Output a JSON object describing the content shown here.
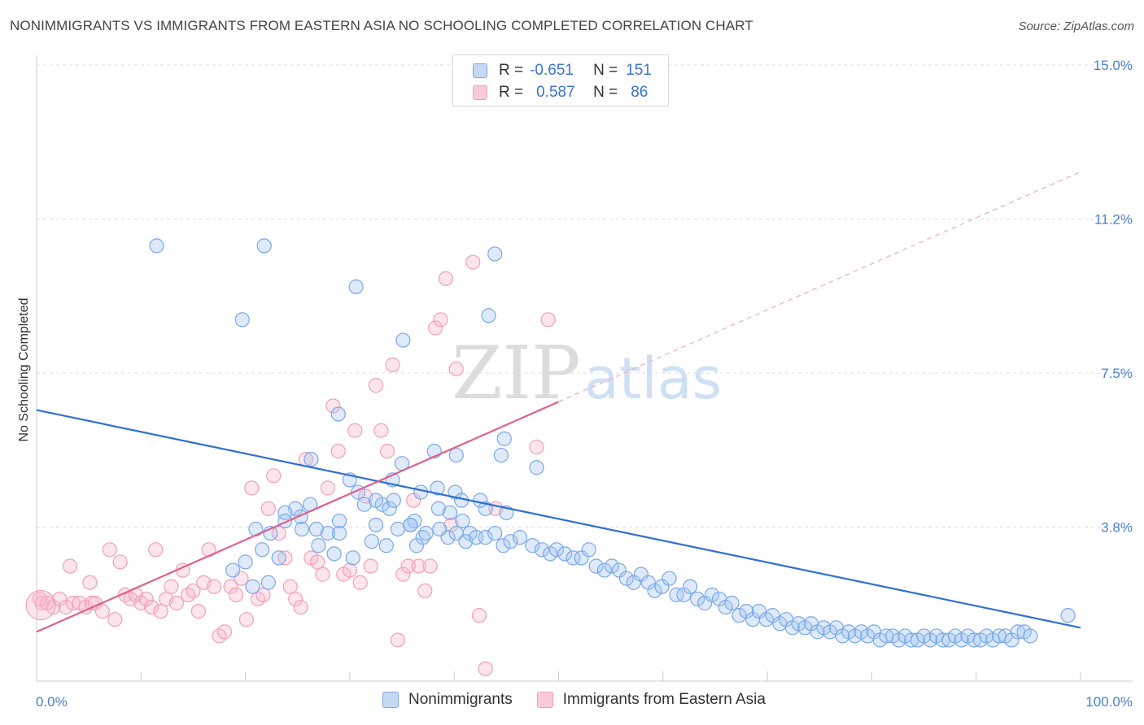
{
  "header": {
    "title": "NONIMMIGRANTS VS IMMIGRANTS FROM EASTERN ASIA NO SCHOOLING COMPLETED CORRELATION CHART",
    "source": "Source: ZipAtlas.com"
  },
  "legend": {
    "r_label": "R =",
    "n_label": "N =",
    "rows": [
      {
        "r": "-0.651",
        "n": "151"
      },
      {
        "r": "0.587",
        "n": "86"
      }
    ]
  },
  "watermark": {
    "zip": "ZIP",
    "atlas": "atlas"
  },
  "chart_data": {
    "type": "scatter",
    "ylabel": "No Schooling Completed",
    "x_ticks": [
      "0.0%",
      "100.0%"
    ],
    "y_ticks": [
      "15.0%",
      "11.2%",
      "7.5%",
      "3.8%"
    ],
    "xlim": [
      0,
      100
    ],
    "ylim": [
      0,
      15
    ],
    "grid": true,
    "legend_position": "top-center",
    "colors": {
      "nonimmigrants": "#7aa8e8",
      "immigrants": "#f0a0b8",
      "blue_line": "#2f6fcf",
      "pink_line": "#e0608a"
    },
    "series": [
      {
        "name": "Nonimmigrants",
        "trend": {
          "x0": 0,
          "y0": 6.6,
          "x1": 100,
          "y1": 1.3
        },
        "points": [
          [
            11.5,
            10.6
          ],
          [
            21.8,
            10.6
          ],
          [
            43.9,
            10.4
          ],
          [
            30.6,
            9.6
          ],
          [
            43.3,
            8.9
          ],
          [
            19.7,
            8.8
          ],
          [
            35.1,
            8.3
          ],
          [
            28.9,
            6.5
          ],
          [
            40.2,
            5.5
          ],
          [
            26.3,
            5.4
          ],
          [
            38.1,
            5.6
          ],
          [
            44.5,
            5.5
          ],
          [
            47.9,
            5.2
          ],
          [
            43.0,
            4.2
          ],
          [
            36.8,
            4.6
          ],
          [
            34.1,
            4.9
          ],
          [
            35.0,
            5.3
          ],
          [
            33.1,
            4.3
          ],
          [
            33.8,
            4.2
          ],
          [
            34.2,
            4.4
          ],
          [
            30.0,
            4.9
          ],
          [
            30.8,
            4.6
          ],
          [
            31.4,
            4.3
          ],
          [
            32.5,
            4.4
          ],
          [
            26.2,
            4.3
          ],
          [
            24.8,
            4.2
          ],
          [
            25.3,
            4.0
          ],
          [
            23.8,
            4.1
          ],
          [
            25.4,
            3.7
          ],
          [
            26.8,
            3.7
          ],
          [
            23.8,
            3.9
          ],
          [
            21.0,
            3.7
          ],
          [
            22.4,
            3.6
          ],
          [
            27.9,
            3.6
          ],
          [
            29.0,
            3.6
          ],
          [
            27.0,
            3.3
          ],
          [
            21.6,
            3.2
          ],
          [
            28.5,
            3.1
          ],
          [
            37.0,
            3.5
          ],
          [
            32.1,
            3.4
          ],
          [
            32.5,
            3.8
          ],
          [
            29.0,
            3.9
          ],
          [
            41.5,
            3.6
          ],
          [
            40.8,
            3.9
          ],
          [
            45.0,
            4.1
          ],
          [
            42.5,
            4.4
          ],
          [
            40.1,
            4.6
          ],
          [
            38.5,
            4.2
          ],
          [
            36.2,
            3.9
          ],
          [
            35.8,
            3.8
          ],
          [
            44.8,
            5.9
          ],
          [
            38.4,
            4.7
          ],
          [
            40.7,
            4.4
          ],
          [
            39.6,
            4.1
          ],
          [
            20.0,
            2.9
          ],
          [
            23.2,
            3.0
          ],
          [
            18.8,
            2.7
          ],
          [
            20.7,
            2.3
          ],
          [
            22.2,
            2.4
          ],
          [
            30.3,
            3.0
          ],
          [
            33.5,
            3.3
          ],
          [
            34.6,
            3.7
          ],
          [
            35.8,
            3.8
          ],
          [
            36.4,
            3.3
          ],
          [
            37.3,
            3.6
          ],
          [
            38.6,
            3.7
          ],
          [
            39.4,
            3.5
          ],
          [
            40.2,
            3.6
          ],
          [
            41.1,
            3.4
          ],
          [
            42.1,
            3.5
          ],
          [
            43.0,
            3.5
          ],
          [
            43.9,
            3.6
          ],
          [
            44.7,
            3.3
          ],
          [
            45.4,
            3.4
          ],
          [
            46.3,
            3.5
          ],
          [
            47.5,
            3.3
          ],
          [
            48.4,
            3.2
          ],
          [
            49.2,
            3.1
          ],
          [
            49.8,
            3.2
          ],
          [
            50.6,
            3.1
          ],
          [
            51.4,
            3.0
          ],
          [
            52.2,
            3.0
          ],
          [
            52.9,
            3.2
          ],
          [
            53.6,
            2.8
          ],
          [
            54.4,
            2.7
          ],
          [
            55.1,
            2.8
          ],
          [
            55.8,
            2.7
          ],
          [
            56.5,
            2.5
          ],
          [
            57.2,
            2.4
          ],
          [
            57.9,
            2.6
          ],
          [
            58.6,
            2.4
          ],
          [
            59.2,
            2.2
          ],
          [
            59.9,
            2.3
          ],
          [
            60.6,
            2.5
          ],
          [
            61.3,
            2.1
          ],
          [
            62.0,
            2.1
          ],
          [
            62.6,
            2.3
          ],
          [
            63.3,
            2.0
          ],
          [
            64.0,
            1.9
          ],
          [
            64.7,
            2.1
          ],
          [
            65.4,
            2.0
          ],
          [
            66.0,
            1.8
          ],
          [
            66.6,
            1.9
          ],
          [
            67.3,
            1.6
          ],
          [
            68.0,
            1.7
          ],
          [
            68.6,
            1.5
          ],
          [
            69.2,
            1.7
          ],
          [
            69.9,
            1.5
          ],
          [
            70.5,
            1.6
          ],
          [
            71.2,
            1.4
          ],
          [
            71.8,
            1.5
          ],
          [
            72.4,
            1.3
          ],
          [
            73.0,
            1.4
          ],
          [
            73.6,
            1.3
          ],
          [
            74.2,
            1.4
          ],
          [
            74.8,
            1.2
          ],
          [
            75.4,
            1.3
          ],
          [
            76.0,
            1.2
          ],
          [
            76.6,
            1.3
          ],
          [
            77.2,
            1.1
          ],
          [
            77.8,
            1.2
          ],
          [
            78.4,
            1.1
          ],
          [
            79.0,
            1.2
          ],
          [
            79.6,
            1.1
          ],
          [
            80.2,
            1.2
          ],
          [
            80.8,
            1.0
          ],
          [
            81.4,
            1.1
          ],
          [
            82.0,
            1.1
          ],
          [
            82.6,
            1.0
          ],
          [
            83.2,
            1.1
          ],
          [
            83.8,
            1.0
          ],
          [
            84.4,
            1.0
          ],
          [
            85.0,
            1.1
          ],
          [
            85.6,
            1.0
          ],
          [
            86.2,
            1.1
          ],
          [
            86.8,
            1.0
          ],
          [
            87.4,
            1.0
          ],
          [
            88.0,
            1.1
          ],
          [
            88.6,
            1.0
          ],
          [
            89.2,
            1.1
          ],
          [
            89.8,
            1.0
          ],
          [
            90.4,
            1.0
          ],
          [
            91.0,
            1.1
          ],
          [
            91.6,
            1.0
          ],
          [
            92.2,
            1.1
          ],
          [
            92.8,
            1.1
          ],
          [
            93.4,
            1.0
          ],
          [
            94.0,
            1.2
          ],
          [
            94.6,
            1.2
          ],
          [
            95.2,
            1.1
          ],
          [
            98.8,
            1.6
          ]
        ]
      },
      {
        "name": "Immigrants from Eastern Asia",
        "trend": {
          "x0": 0,
          "y0": 1.2,
          "x1": 50,
          "y1": 6.8,
          "dashed_to": {
            "x": 100,
            "y": 12.4
          }
        },
        "points": [
          [
            0.5,
            1.9
          ],
          [
            1.0,
            1.9
          ],
          [
            1.6,
            1.8
          ],
          [
            2.2,
            2.0
          ],
          [
            2.8,
            1.8
          ],
          [
            3.5,
            1.9
          ],
          [
            4.1,
            1.9
          ],
          [
            4.7,
            1.8
          ],
          [
            5.3,
            1.9
          ],
          [
            0.3,
            2.0
          ],
          [
            3.2,
            2.8
          ],
          [
            5.1,
            2.4
          ],
          [
            5.6,
            1.9
          ],
          [
            6.3,
            1.7
          ],
          [
            7.0,
            3.2
          ],
          [
            7.5,
            1.5
          ],
          [
            8.0,
            2.9
          ],
          [
            8.5,
            2.1
          ],
          [
            9.0,
            2.0
          ],
          [
            9.5,
            2.1
          ],
          [
            10.0,
            1.9
          ],
          [
            10.5,
            2.0
          ],
          [
            11.0,
            1.8
          ],
          [
            11.4,
            3.2
          ],
          [
            11.9,
            1.7
          ],
          [
            12.4,
            2.0
          ],
          [
            12.9,
            2.3
          ],
          [
            13.4,
            1.9
          ],
          [
            14.0,
            2.7
          ],
          [
            14.5,
            2.1
          ],
          [
            15.0,
            2.2
          ],
          [
            15.5,
            1.7
          ],
          [
            16.0,
            2.4
          ],
          [
            16.5,
            3.2
          ],
          [
            17.0,
            2.3
          ],
          [
            17.5,
            1.1
          ],
          [
            18.0,
            1.2
          ],
          [
            18.6,
            2.3
          ],
          [
            19.1,
            2.1
          ],
          [
            19.6,
            2.5
          ],
          [
            20.1,
            1.5
          ],
          [
            20.6,
            4.7
          ],
          [
            21.2,
            2.0
          ],
          [
            21.7,
            2.1
          ],
          [
            22.2,
            4.2
          ],
          [
            22.7,
            5.0
          ],
          [
            23.2,
            3.6
          ],
          [
            23.8,
            3.0
          ],
          [
            24.3,
            2.3
          ],
          [
            24.8,
            2.0
          ],
          [
            25.3,
            1.8
          ],
          [
            25.8,
            5.4
          ],
          [
            26.3,
            3.0
          ],
          [
            26.9,
            2.9
          ],
          [
            27.4,
            2.6
          ],
          [
            27.9,
            4.7
          ],
          [
            28.4,
            6.7
          ],
          [
            28.9,
            5.6
          ],
          [
            29.4,
            2.6
          ],
          [
            30.0,
            2.7
          ],
          [
            30.5,
            6.1
          ],
          [
            31.0,
            2.4
          ],
          [
            31.5,
            4.5
          ],
          [
            32.0,
            2.8
          ],
          [
            32.5,
            7.2
          ],
          [
            33.0,
            6.1
          ],
          [
            33.6,
            5.6
          ],
          [
            34.1,
            7.7
          ],
          [
            34.6,
            1.0
          ],
          [
            35.1,
            2.6
          ],
          [
            35.6,
            2.8
          ],
          [
            36.1,
            4.4
          ],
          [
            36.6,
            2.8
          ],
          [
            37.2,
            2.2
          ],
          [
            37.7,
            2.8
          ],
          [
            38.2,
            8.6
          ],
          [
            38.7,
            8.8
          ],
          [
            39.2,
            9.8
          ],
          [
            39.7,
            3.8
          ],
          [
            40.2,
            7.6
          ],
          [
            41.8,
            10.2
          ],
          [
            42.4,
            1.6
          ],
          [
            43.0,
            0.3
          ],
          [
            44.0,
            4.2
          ],
          [
            47.9,
            5.7
          ],
          [
            49.0,
            8.8
          ]
        ]
      }
    ]
  },
  "bottom_legend": {
    "items": [
      {
        "label": "Nonimmigrants"
      },
      {
        "label": "Immigrants from Eastern Asia"
      }
    ]
  }
}
